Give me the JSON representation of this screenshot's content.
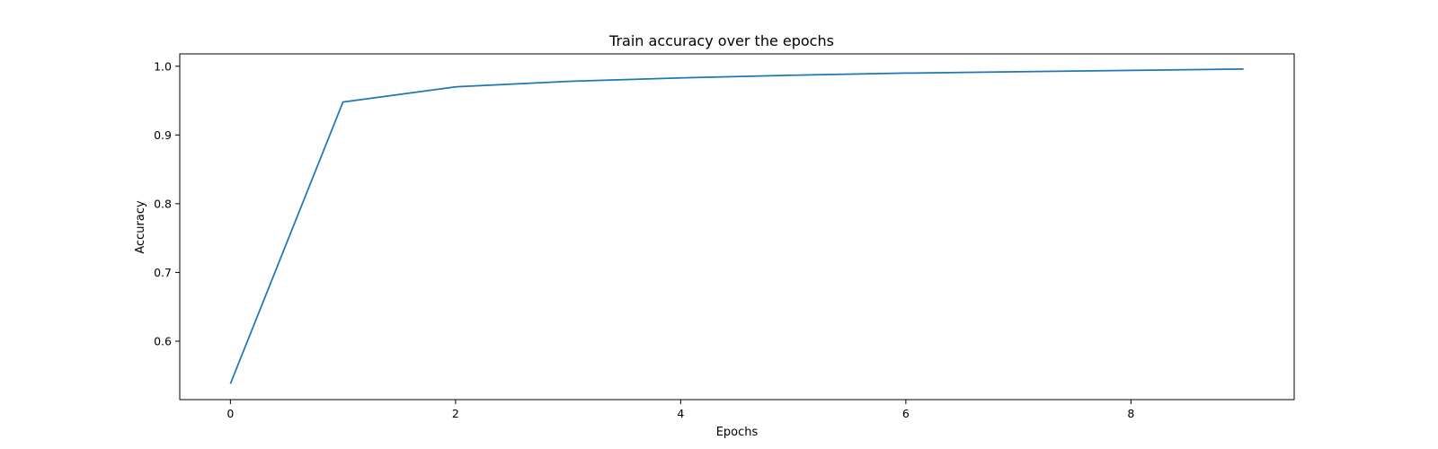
{
  "chart_data": {
    "type": "line",
    "title": "Train accuracy over the epochs",
    "xlabel": "Epochs",
    "ylabel": "Accuracy",
    "x": [
      0,
      1,
      2,
      3,
      4,
      5,
      6,
      7,
      8,
      9
    ],
    "series": [
      {
        "values": [
          0.538,
          0.948,
          0.97,
          0.978,
          0.983,
          0.987,
          0.99,
          0.992,
          0.994,
          0.996
        ],
        "color": "#1f77b4"
      }
    ],
    "xlim": [
      -0.45,
      9.45
    ],
    "ylim": [
      0.515,
      1.018
    ],
    "xticks": [
      0,
      2,
      4,
      6,
      8
    ],
    "xtick_labels": [
      "0",
      "2",
      "4",
      "6",
      "8"
    ],
    "yticks": [
      0.6,
      0.7,
      0.8,
      0.9,
      1.0
    ],
    "ytick_labels": [
      "0.6",
      "0.7",
      "0.8",
      "0.9",
      "1.0"
    ],
    "grid": false,
    "legend": false
  }
}
